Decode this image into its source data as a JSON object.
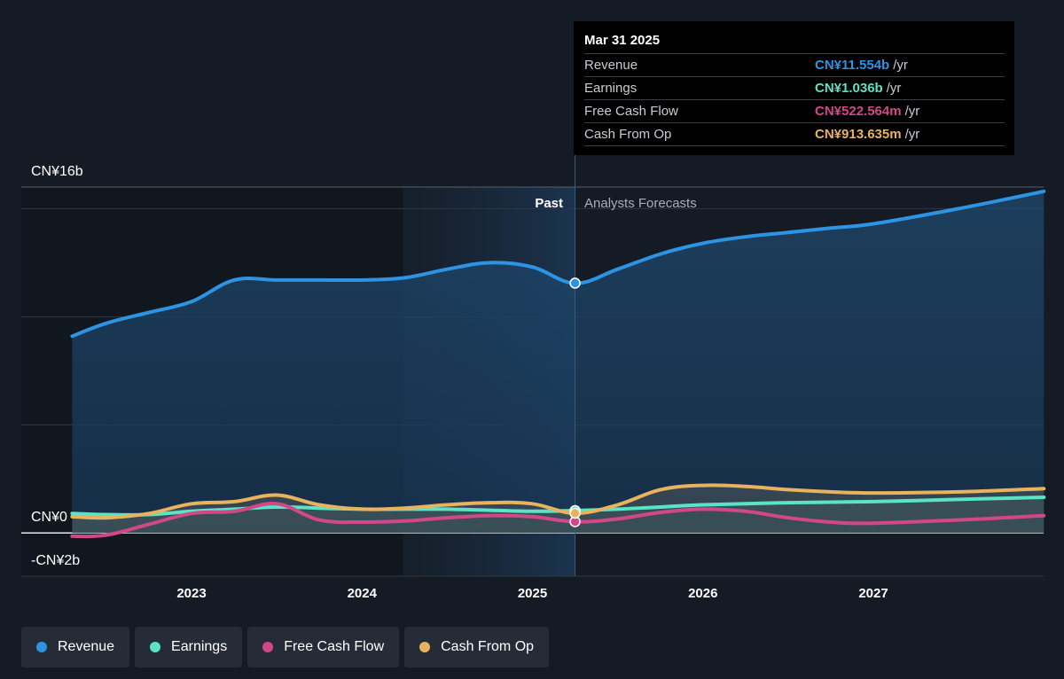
{
  "chart_data": {
    "type": "line",
    "y_axis": {
      "ylim": [
        -2,
        16
      ],
      "tick_labels": [
        "CN¥16b",
        "CN¥0",
        "-CN¥2b"
      ],
      "unit": "CN¥ billions"
    },
    "x_axis": {
      "tick_labels": [
        "2023",
        "2024",
        "2025",
        "2026",
        "2027"
      ],
      "xlim": [
        2022.25,
        2028.0
      ]
    },
    "past_label": "Past",
    "forecast_label": "Analysts Forecasts",
    "divider_x": 2025.25,
    "grid": "horizontal",
    "series": [
      {
        "name": "Revenue",
        "color": "#2d94e3",
        "points": [
          [
            2022.3,
            9.1
          ],
          [
            2022.5,
            9.7
          ],
          [
            2022.75,
            10.2
          ],
          [
            2023.0,
            10.7
          ],
          [
            2023.25,
            11.7
          ],
          [
            2023.5,
            11.7
          ],
          [
            2023.75,
            11.7
          ],
          [
            2024.0,
            11.7
          ],
          [
            2024.25,
            11.8
          ],
          [
            2024.5,
            12.2
          ],
          [
            2024.75,
            12.5
          ],
          [
            2025.0,
            12.3
          ],
          [
            2025.25,
            11.55
          ],
          [
            2025.5,
            12.2
          ],
          [
            2025.75,
            12.9
          ],
          [
            2026.0,
            13.4
          ],
          [
            2026.25,
            13.7
          ],
          [
            2026.5,
            13.9
          ],
          [
            2026.75,
            14.1
          ],
          [
            2027.0,
            14.3
          ],
          [
            2027.5,
            15.0
          ],
          [
            2028.0,
            15.8
          ]
        ]
      },
      {
        "name": "Earnings",
        "color": "#5ae3c4",
        "points": [
          [
            2022.3,
            0.9
          ],
          [
            2022.5,
            0.85
          ],
          [
            2022.75,
            0.85
          ],
          [
            2023.0,
            1.0
          ],
          [
            2023.25,
            1.1
          ],
          [
            2023.5,
            1.2
          ],
          [
            2023.75,
            1.15
          ],
          [
            2024.0,
            1.1
          ],
          [
            2024.25,
            1.1
          ],
          [
            2024.5,
            1.1
          ],
          [
            2024.75,
            1.05
          ],
          [
            2025.0,
            1.0
          ],
          [
            2025.25,
            1.036
          ],
          [
            2025.5,
            1.1
          ],
          [
            2025.75,
            1.2
          ],
          [
            2026.0,
            1.3
          ],
          [
            2026.5,
            1.4
          ],
          [
            2027.0,
            1.45
          ],
          [
            2027.5,
            1.55
          ],
          [
            2028.0,
            1.65
          ]
        ]
      },
      {
        "name": "Free Cash Flow",
        "color": "#d2478a",
        "points": [
          [
            2022.3,
            -0.15
          ],
          [
            2022.5,
            -0.1
          ],
          [
            2022.75,
            0.4
          ],
          [
            2023.0,
            0.9
          ],
          [
            2023.25,
            1.0
          ],
          [
            2023.5,
            1.35
          ],
          [
            2023.75,
            0.6
          ],
          [
            2024.0,
            0.5
          ],
          [
            2024.25,
            0.55
          ],
          [
            2024.5,
            0.7
          ],
          [
            2024.75,
            0.8
          ],
          [
            2025.0,
            0.75
          ],
          [
            2025.25,
            0.52
          ],
          [
            2025.5,
            0.65
          ],
          [
            2025.75,
            0.95
          ],
          [
            2026.0,
            1.1
          ],
          [
            2026.25,
            1.0
          ],
          [
            2026.5,
            0.7
          ],
          [
            2026.75,
            0.5
          ],
          [
            2027.0,
            0.45
          ],
          [
            2027.5,
            0.6
          ],
          [
            2028.0,
            0.8
          ]
        ]
      },
      {
        "name": "Cash From Op",
        "color": "#e9b25d",
        "points": [
          [
            2022.3,
            0.75
          ],
          [
            2022.5,
            0.7
          ],
          [
            2022.75,
            0.9
          ],
          [
            2023.0,
            1.35
          ],
          [
            2023.25,
            1.45
          ],
          [
            2023.5,
            1.75
          ],
          [
            2023.75,
            1.3
          ],
          [
            2024.0,
            1.1
          ],
          [
            2024.25,
            1.15
          ],
          [
            2024.5,
            1.3
          ],
          [
            2024.75,
            1.4
          ],
          [
            2025.0,
            1.35
          ],
          [
            2025.25,
            0.91
          ],
          [
            2025.5,
            1.3
          ],
          [
            2025.75,
            2.0
          ],
          [
            2026.0,
            2.2
          ],
          [
            2026.25,
            2.15
          ],
          [
            2026.5,
            2.0
          ],
          [
            2026.75,
            1.9
          ],
          [
            2027.0,
            1.85
          ],
          [
            2027.5,
            1.9
          ],
          [
            2028.0,
            2.05
          ]
        ]
      }
    ]
  },
  "tooltip": {
    "date": "Mar 31 2025",
    "rows": [
      {
        "label": "Revenue",
        "value": "CN¥11.554b",
        "unit": "/yr",
        "color": "#2d94e3"
      },
      {
        "label": "Earnings",
        "value": "CN¥1.036b",
        "unit": "/yr",
        "color": "#5ae3c4"
      },
      {
        "label": "Free Cash Flow",
        "value": "CN¥522.564m",
        "unit": "/yr",
        "color": "#d2478a"
      },
      {
        "label": "Cash From Op",
        "value": "CN¥913.635m",
        "unit": "/yr",
        "color": "#e9b25d"
      }
    ]
  },
  "legend": [
    {
      "label": "Revenue",
      "color": "#2d94e3"
    },
    {
      "label": "Earnings",
      "color": "#5ae3c4"
    },
    {
      "label": "Free Cash Flow",
      "color": "#d2478a"
    },
    {
      "label": "Cash From Op",
      "color": "#e9b25d"
    }
  ]
}
